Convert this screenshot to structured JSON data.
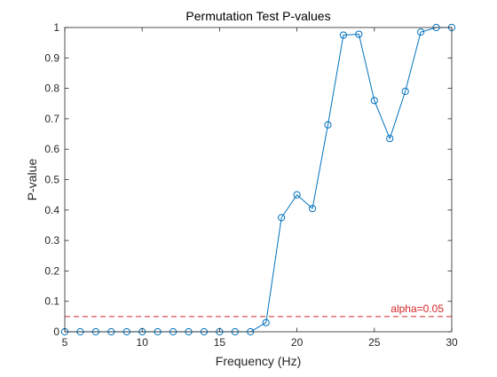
{
  "chart_data": {
    "type": "line",
    "title": "Permutation Test P-values",
    "xlabel": "Frequency (Hz)",
    "ylabel": "P-value",
    "xlim": [
      5,
      30
    ],
    "ylim": [
      0,
      1
    ],
    "xticks": [
      5,
      10,
      15,
      20,
      25,
      30
    ],
    "yticks": [
      0,
      0.1,
      0.2,
      0.3,
      0.4,
      0.5,
      0.6,
      0.7,
      0.8,
      0.9,
      1
    ],
    "grid": false,
    "legend": null,
    "series": [
      {
        "color": "#0072bd",
        "marker": "circle",
        "x": [
          5,
          6,
          7,
          8,
          9,
          10,
          11,
          12,
          13,
          14,
          15,
          16,
          17,
          18,
          19,
          20,
          21,
          22,
          23,
          24,
          25,
          26,
          27,
          28,
          29,
          30
        ],
        "y": [
          0,
          0,
          0,
          0,
          0,
          0,
          0,
          0,
          0,
          0,
          0,
          0,
          0,
          0.03,
          0.375,
          0.45,
          0.405,
          0.68,
          0.975,
          0.978,
          0.76,
          0.635,
          0.79,
          0.985,
          1,
          1
        ]
      }
    ],
    "threshold": {
      "y": 0.05,
      "label": "alpha=0.05",
      "color": "#d62728",
      "style": "dashed"
    }
  }
}
